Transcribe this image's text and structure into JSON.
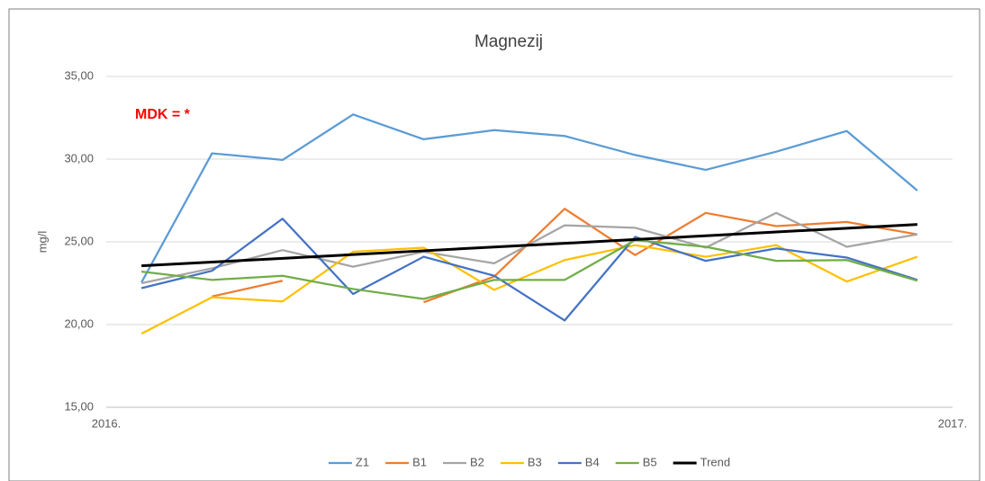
{
  "chart_data": {
    "type": "line",
    "title": "Magnezij",
    "y_label": "mg/l",
    "annotation": "MDK = *",
    "x": [
      0.5,
      1.5,
      2.5,
      3.5,
      4.5,
      5.5,
      6.5,
      7.5,
      8.5,
      9.5,
      10.5,
      11.5
    ],
    "xlim": [
      0,
      12
    ],
    "xticks": [
      {
        "value": 0,
        "label": "2016."
      },
      {
        "value": 12,
        "label": "2017."
      }
    ],
    "ylim": [
      15,
      35
    ],
    "yticks": [
      {
        "value": 15,
        "label": "15,00"
      },
      {
        "value": 20,
        "label": "20,00"
      },
      {
        "value": 25,
        "label": "25,00"
      },
      {
        "value": 30,
        "label": "30,00"
      },
      {
        "value": 35,
        "label": "35,00"
      }
    ],
    "grid": true,
    "legend": "bottom",
    "series": [
      {
        "name": "Z1",
        "color": "#5b9bd5",
        "values": [
          22.55,
          30.35,
          29.95,
          32.7,
          31.2,
          31.75,
          31.4,
          30.25,
          29.35,
          30.45,
          31.7,
          28.1
        ]
      },
      {
        "name": "B1",
        "color": "#ed7d31",
        "values": [
          null,
          21.7,
          22.65,
          null,
          21.35,
          22.9,
          27.0,
          24.2,
          26.75,
          25.95,
          26.2,
          25.45
        ]
      },
      {
        "name": "B2",
        "color": "#a5a5a5",
        "values": [
          22.5,
          23.4,
          24.5,
          23.5,
          24.4,
          23.7,
          26.0,
          25.85,
          24.65,
          26.75,
          24.7,
          25.45
        ]
      },
      {
        "name": "B3",
        "color": "#ffc000",
        "values": [
          19.45,
          21.65,
          21.4,
          24.4,
          24.65,
          22.1,
          23.9,
          24.8,
          24.1,
          24.8,
          22.6,
          24.1
        ]
      },
      {
        "name": "B4",
        "color": "#4472c4",
        "values": [
          22.2,
          23.25,
          26.4,
          21.85,
          24.1,
          22.95,
          20.25,
          25.3,
          23.85,
          24.6,
          24.05,
          22.7
        ]
      },
      {
        "name": "B5",
        "color": "#70ad47",
        "values": [
          23.2,
          22.7,
          22.95,
          22.15,
          21.55,
          22.7,
          22.7,
          25.1,
          24.7,
          23.85,
          23.9,
          22.65
        ]
      },
      {
        "name": "Trend",
        "color": "#000000",
        "values": [
          23.55,
          23.78,
          24.0,
          24.23,
          24.46,
          24.69,
          24.91,
          25.14,
          25.37,
          25.6,
          25.82,
          26.05
        ]
      }
    ]
  }
}
